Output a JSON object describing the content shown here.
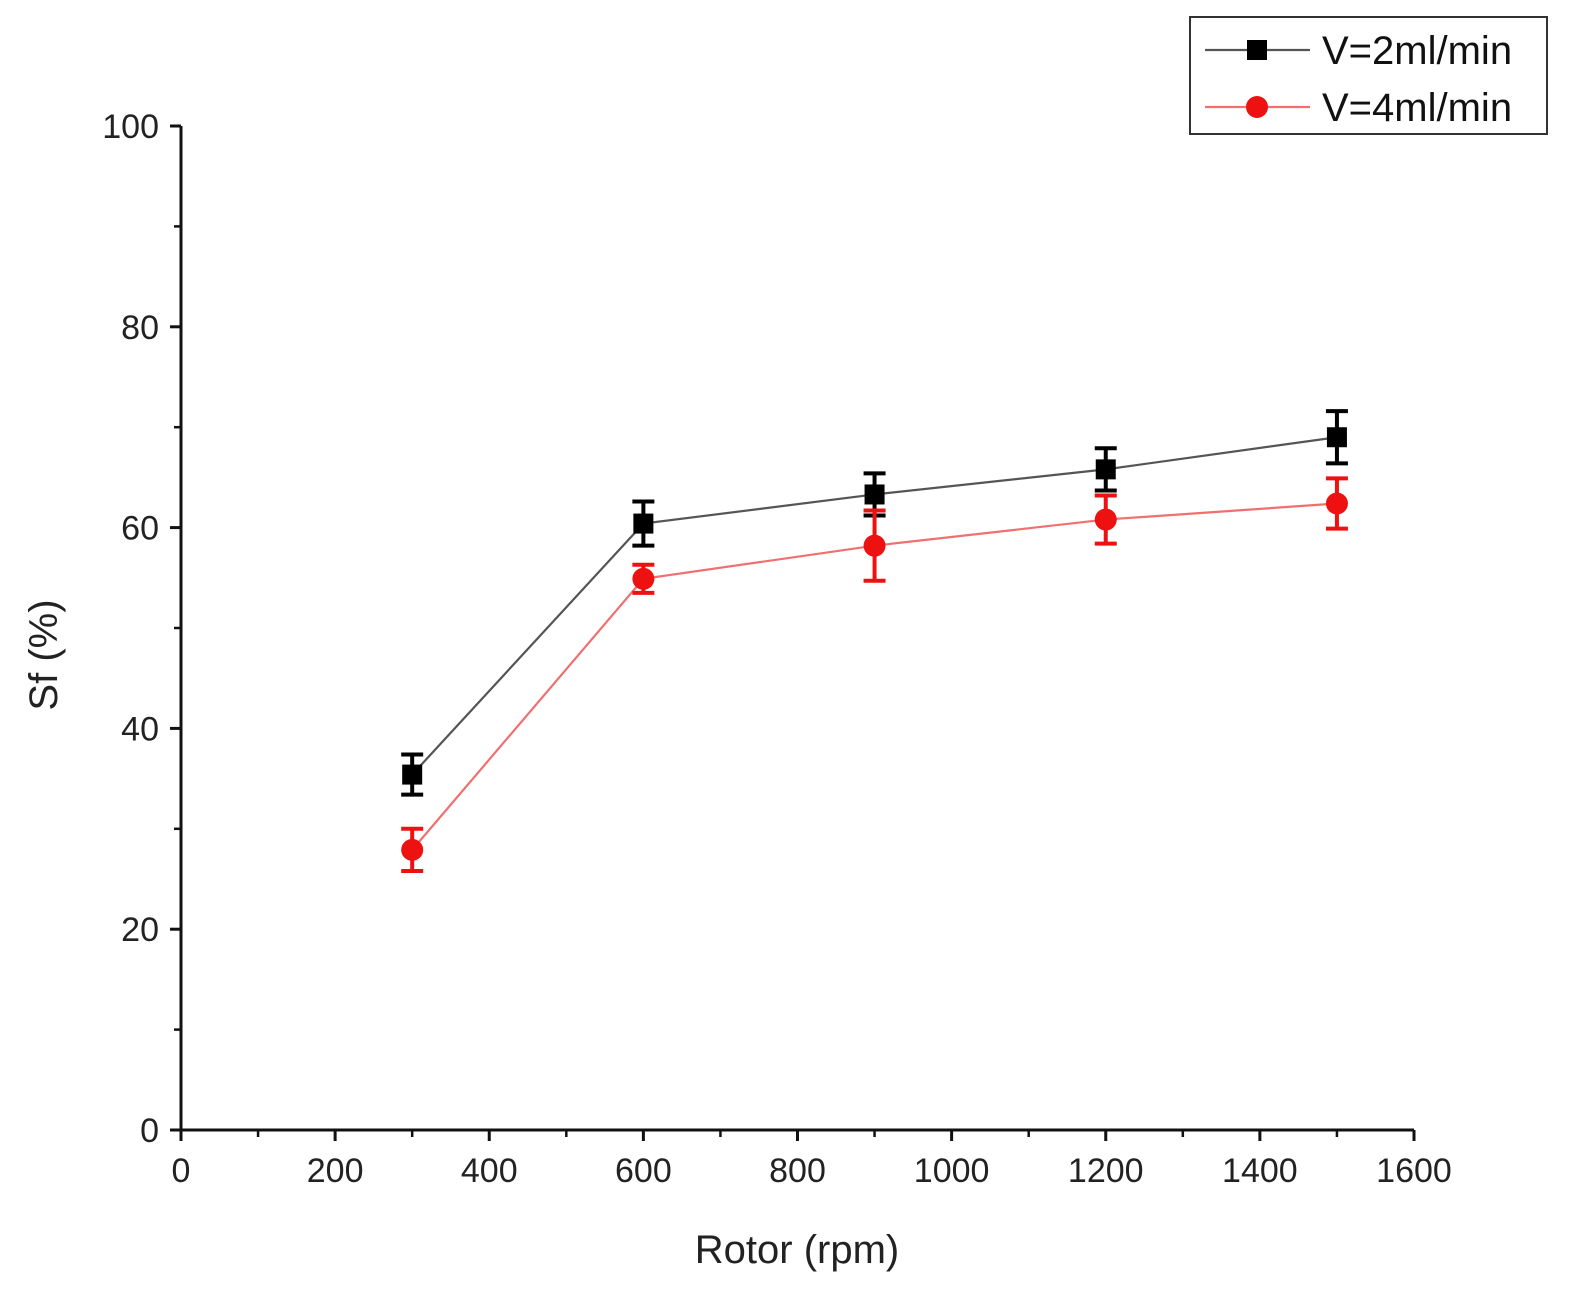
{
  "chart_data": {
    "type": "line",
    "title": "",
    "xlabel": "Rotor (rpm)",
    "ylabel": "Sf (%)",
    "xlim": [
      0,
      1600
    ],
    "ylim": [
      0,
      100
    ],
    "x_ticks": [
      0,
      200,
      400,
      600,
      800,
      1000,
      1200,
      1400,
      1600
    ],
    "y_ticks": [
      0,
      20,
      40,
      60,
      80,
      100
    ],
    "grid": false,
    "legend_position": "top-right",
    "series": [
      {
        "name": "V=2ml/min",
        "color": "#000000",
        "line_color": "#555555",
        "marker": "square",
        "x": [
          300,
          600,
          900,
          1200,
          1500
        ],
        "y": [
          35.4,
          60.4,
          63.3,
          65.8,
          69.0
        ],
        "error": [
          2.0,
          2.2,
          2.1,
          2.1,
          2.6
        ]
      },
      {
        "name": "V=4ml/min",
        "color": "#ee1111",
        "line_color": "#f07070",
        "marker": "circle",
        "x": [
          300,
          600,
          900,
          1200,
          1500
        ],
        "y": [
          27.9,
          54.9,
          58.2,
          60.8,
          62.4
        ],
        "error": [
          2.1,
          1.4,
          3.5,
          2.4,
          2.5
        ]
      }
    ]
  }
}
